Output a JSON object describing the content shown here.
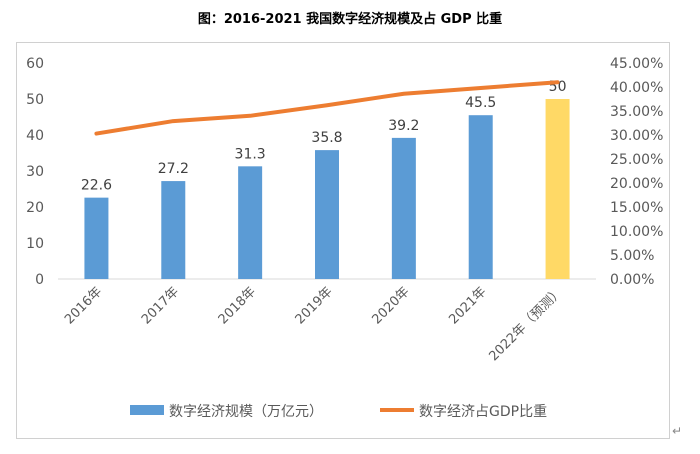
{
  "title": "图：2016-2021 我国数字经济规模及占 GDP 比重",
  "chart_data": {
    "type": "bar+line",
    "title": "",
    "categories": [
      "2016年",
      "2017年",
      "2018年",
      "2019年",
      "2020年",
      "2021年",
      "2022年（预测）"
    ],
    "series": [
      {
        "name": "数字经济规模（万亿元）",
        "type": "bar",
        "axis": "left",
        "values": [
          22.6,
          27.2,
          31.3,
          35.8,
          39.2,
          45.5,
          50
        ],
        "color": "#5B9BD5",
        "highlight_last_color": "#FFD966"
      },
      {
        "name": "数字经济占GDP比重",
        "type": "line",
        "axis": "right",
        "values": [
          30.3,
          32.9,
          34.0,
          36.2,
          38.6,
          39.8,
          41.0
        ],
        "unit": "%",
        "color": "#ED7D31"
      }
    ],
    "left_axis": {
      "range": [
        0,
        60
      ],
      "ticks": [
        "0",
        "10",
        "20",
        "30",
        "40",
        "50",
        "60"
      ]
    },
    "right_axis": {
      "range": [
        0,
        45
      ],
      "ticks": [
        "0.00%",
        "5.00%",
        "10.00%",
        "15.00%",
        "20.00%",
        "25.00%",
        "30.00%",
        "35.00%",
        "40.00%",
        "45.00%"
      ]
    },
    "grid": false,
    "legend": "bottom"
  }
}
